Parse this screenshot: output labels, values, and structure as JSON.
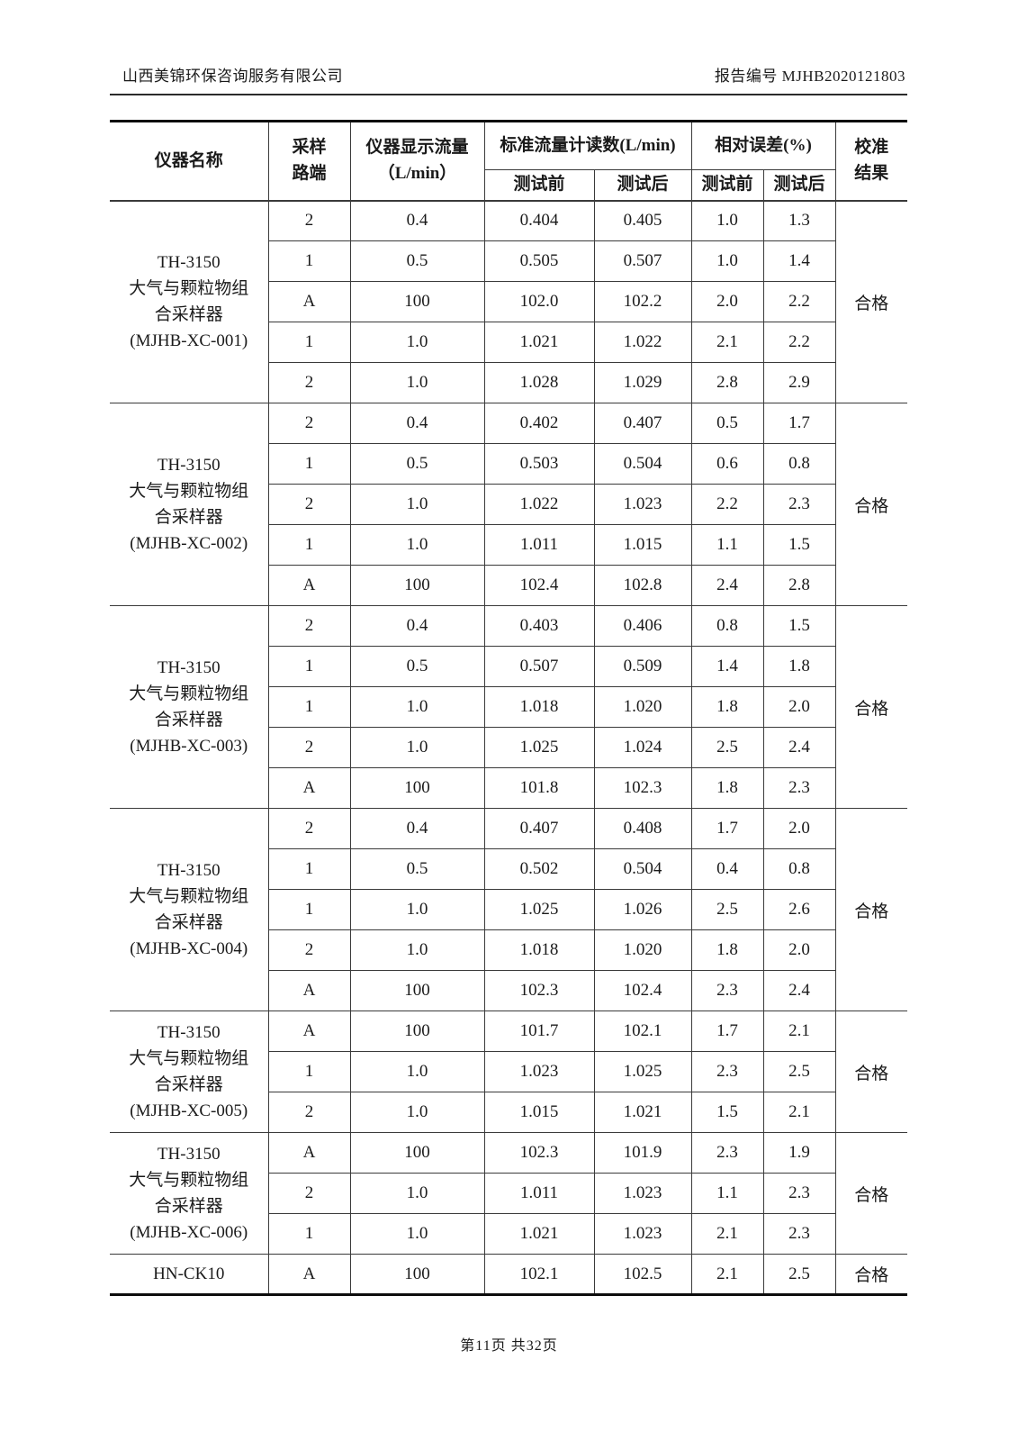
{
  "header": {
    "company": "山西美锦环保咨询服务有限公司",
    "report_no": "报告编号 MJHB2020121803"
  },
  "table": {
    "headers": {
      "instrument": "仪器名称",
      "path_line1": "采样",
      "path_line2": "路端",
      "flow_line1": "仪器显示流量",
      "flow_line2": "（L/min）",
      "std_reading": "标准流量计读数(L/min)",
      "rel_error": "相对误差(%)",
      "before_1": "测试前",
      "after_1": "测试后",
      "before_2": "测试前",
      "after_2": "测试后",
      "result_line1": "校准",
      "result_line2": "结果"
    },
    "groups": [
      {
        "name_lines": [
          "TH-3150",
          "大气与颗粒物组",
          "合采样器",
          "(MJHB-XC-001)"
        ],
        "result": "合格",
        "rows": [
          [
            "2",
            "0.4",
            "0.404",
            "0.405",
            "1.0",
            "1.3"
          ],
          [
            "1",
            "0.5",
            "0.505",
            "0.507",
            "1.0",
            "1.4"
          ],
          [
            "A",
            "100",
            "102.0",
            "102.2",
            "2.0",
            "2.2"
          ],
          [
            "1",
            "1.0",
            "1.021",
            "1.022",
            "2.1",
            "2.2"
          ],
          [
            "2",
            "1.0",
            "1.028",
            "1.029",
            "2.8",
            "2.9"
          ]
        ]
      },
      {
        "name_lines": [
          "TH-3150",
          "大气与颗粒物组",
          "合采样器",
          "(MJHB-XC-002)"
        ],
        "result": "合格",
        "rows": [
          [
            "2",
            "0.4",
            "0.402",
            "0.407",
            "0.5",
            "1.7"
          ],
          [
            "1",
            "0.5",
            "0.503",
            "0.504",
            "0.6",
            "0.8"
          ],
          [
            "2",
            "1.0",
            "1.022",
            "1.023",
            "2.2",
            "2.3"
          ],
          [
            "1",
            "1.0",
            "1.011",
            "1.015",
            "1.1",
            "1.5"
          ],
          [
            "A",
            "100",
            "102.4",
            "102.8",
            "2.4",
            "2.8"
          ]
        ]
      },
      {
        "name_lines": [
          "TH-3150",
          "大气与颗粒物组",
          "合采样器",
          "(MJHB-XC-003)"
        ],
        "result": "合格",
        "rows": [
          [
            "2",
            "0.4",
            "0.403",
            "0.406",
            "0.8",
            "1.5"
          ],
          [
            "1",
            "0.5",
            "0.507",
            "0.509",
            "1.4",
            "1.8"
          ],
          [
            "1",
            "1.0",
            "1.018",
            "1.020",
            "1.8",
            "2.0"
          ],
          [
            "2",
            "1.0",
            "1.025",
            "1.024",
            "2.5",
            "2.4"
          ],
          [
            "A",
            "100",
            "101.8",
            "102.3",
            "1.8",
            "2.3"
          ]
        ]
      },
      {
        "name_lines": [
          "TH-3150",
          "大气与颗粒物组",
          "合采样器",
          "(MJHB-XC-004)"
        ],
        "result": "合格",
        "rows": [
          [
            "2",
            "0.4",
            "0.407",
            "0.408",
            "1.7",
            "2.0"
          ],
          [
            "1",
            "0.5",
            "0.502",
            "0.504",
            "0.4",
            "0.8"
          ],
          [
            "1",
            "1.0",
            "1.025",
            "1.026",
            "2.5",
            "2.6"
          ],
          [
            "2",
            "1.0",
            "1.018",
            "1.020",
            "1.8",
            "2.0"
          ],
          [
            "A",
            "100",
            "102.3",
            "102.4",
            "2.3",
            "2.4"
          ]
        ]
      },
      {
        "name_lines": [
          "TH-3150",
          "大气与颗粒物组",
          "合采样器",
          "(MJHB-XC-005)"
        ],
        "result": "合格",
        "rows": [
          [
            "A",
            "100",
            "101.7",
            "102.1",
            "1.7",
            "2.1"
          ],
          [
            "1",
            "1.0",
            "1.023",
            "1.025",
            "2.3",
            "2.5"
          ],
          [
            "2",
            "1.0",
            "1.015",
            "1.021",
            "1.5",
            "2.1"
          ]
        ]
      },
      {
        "name_lines": [
          "TH-3150",
          "大气与颗粒物组",
          "合采样器",
          "(MJHB-XC-006)"
        ],
        "result": "合格",
        "rows": [
          [
            "A",
            "100",
            "102.3",
            "101.9",
            "2.3",
            "1.9"
          ],
          [
            "2",
            "1.0",
            "1.011",
            "1.023",
            "1.1",
            "2.3"
          ],
          [
            "1",
            "1.0",
            "1.021",
            "1.023",
            "2.1",
            "2.3"
          ]
        ]
      },
      {
        "name_lines": [
          "HN-CK10"
        ],
        "result": "合格",
        "rows": [
          [
            "A",
            "100",
            "102.1",
            "102.5",
            "2.1",
            "2.5"
          ]
        ]
      }
    ]
  },
  "footer": {
    "page_info": "第11页  共32页"
  }
}
